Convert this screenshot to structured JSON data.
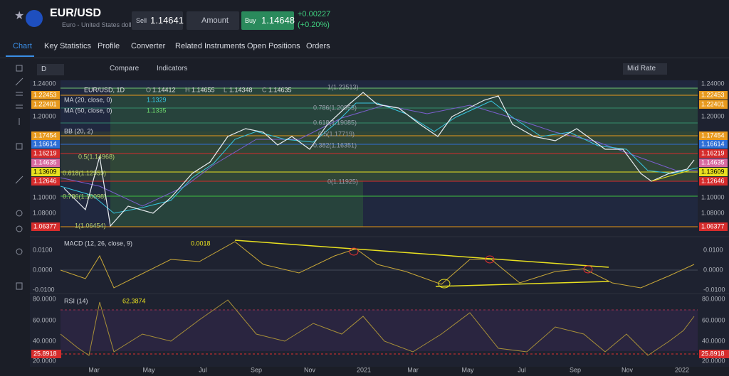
{
  "header": {
    "symbol": "EUR/USD",
    "description": "Euro - United States dollar",
    "sell_label": "Sell",
    "sell_price": "1.14641",
    "amount_label": "Amount",
    "buy_label": "Buy",
    "buy_price": "1.14648",
    "change": "+0.00227",
    "change_pct": "(+0.20%)"
  },
  "tabs": [
    "Chart",
    "Key Statistics",
    "Profile",
    "Converter",
    "Related Instruments",
    "Open Positions",
    "Orders"
  ],
  "toolbar": {
    "interval": "D",
    "compare": "Compare",
    "indicators": "Indicators",
    "price_type": "Mid Rate"
  },
  "legend": {
    "symbol": "EUR/USD, 1D",
    "open_label": "O",
    "open": "1.14412",
    "high_label": "H",
    "high": "1.14655",
    "low_label": "L",
    "low": "1.14348",
    "close_label": "C",
    "close": "1.14635"
  },
  "indicators": [
    {
      "name": "MA (20, close, 0)",
      "value": "1.1329"
    },
    {
      "name": "MA (50, close, 0)",
      "value": "1.1335"
    },
    {
      "name": "BB (20, 2)"
    }
  ],
  "price_axis": [
    "1.24000",
    "1.20000",
    "1.10000",
    "1.08000"
  ],
  "price_levels": [
    {
      "label": "1.22453",
      "color": "#e89a1e"
    },
    {
      "label": "1.22401",
      "color": "#e89a1e"
    },
    {
      "label": "1.17454",
      "color": "#e89a1e"
    },
    {
      "label": "1.16614",
      "color": "#2f6fd6"
    },
    {
      "label": "1.16219",
      "color": "#d62c2c"
    },
    {
      "label": "1.14635",
      "color": "#d86aa0"
    },
    {
      "label": "1.13609",
      "color": "#e8e020"
    },
    {
      "label": "1.12646",
      "color": "#d62c2c"
    },
    {
      "label": "1.06377",
      "color": "#d62c2c"
    }
  ],
  "fib_labels": [
    "1(1.23513)",
    "0.786(1.20953)",
    "0.618(1.19085)",
    "0.5(1.17719)",
    "0.382(1.16351)",
    "0(1.11925)",
    "0.5(1.14968)",
    "0.618(1.12959)",
    "0.786(1.10098)",
    "1(1.06454)"
  ],
  "macd": {
    "name": "MACD (12, 26, close, 9)",
    "value": "0.0018",
    "axis": [
      "0.0100",
      "0.0000",
      "-0.0100"
    ]
  },
  "rsi": {
    "name": "RSI (14)",
    "value": "62.3874",
    "axis": [
      "80.0000",
      "60.0000",
      "40.0000",
      "20.0000"
    ],
    "level": "25.8918"
  },
  "x_axis": [
    "Mar",
    "May",
    "Jul",
    "Sep",
    "Nov",
    "2021",
    "Mar",
    "May",
    "Jul",
    "Sep",
    "Nov",
    "2022"
  ]
}
